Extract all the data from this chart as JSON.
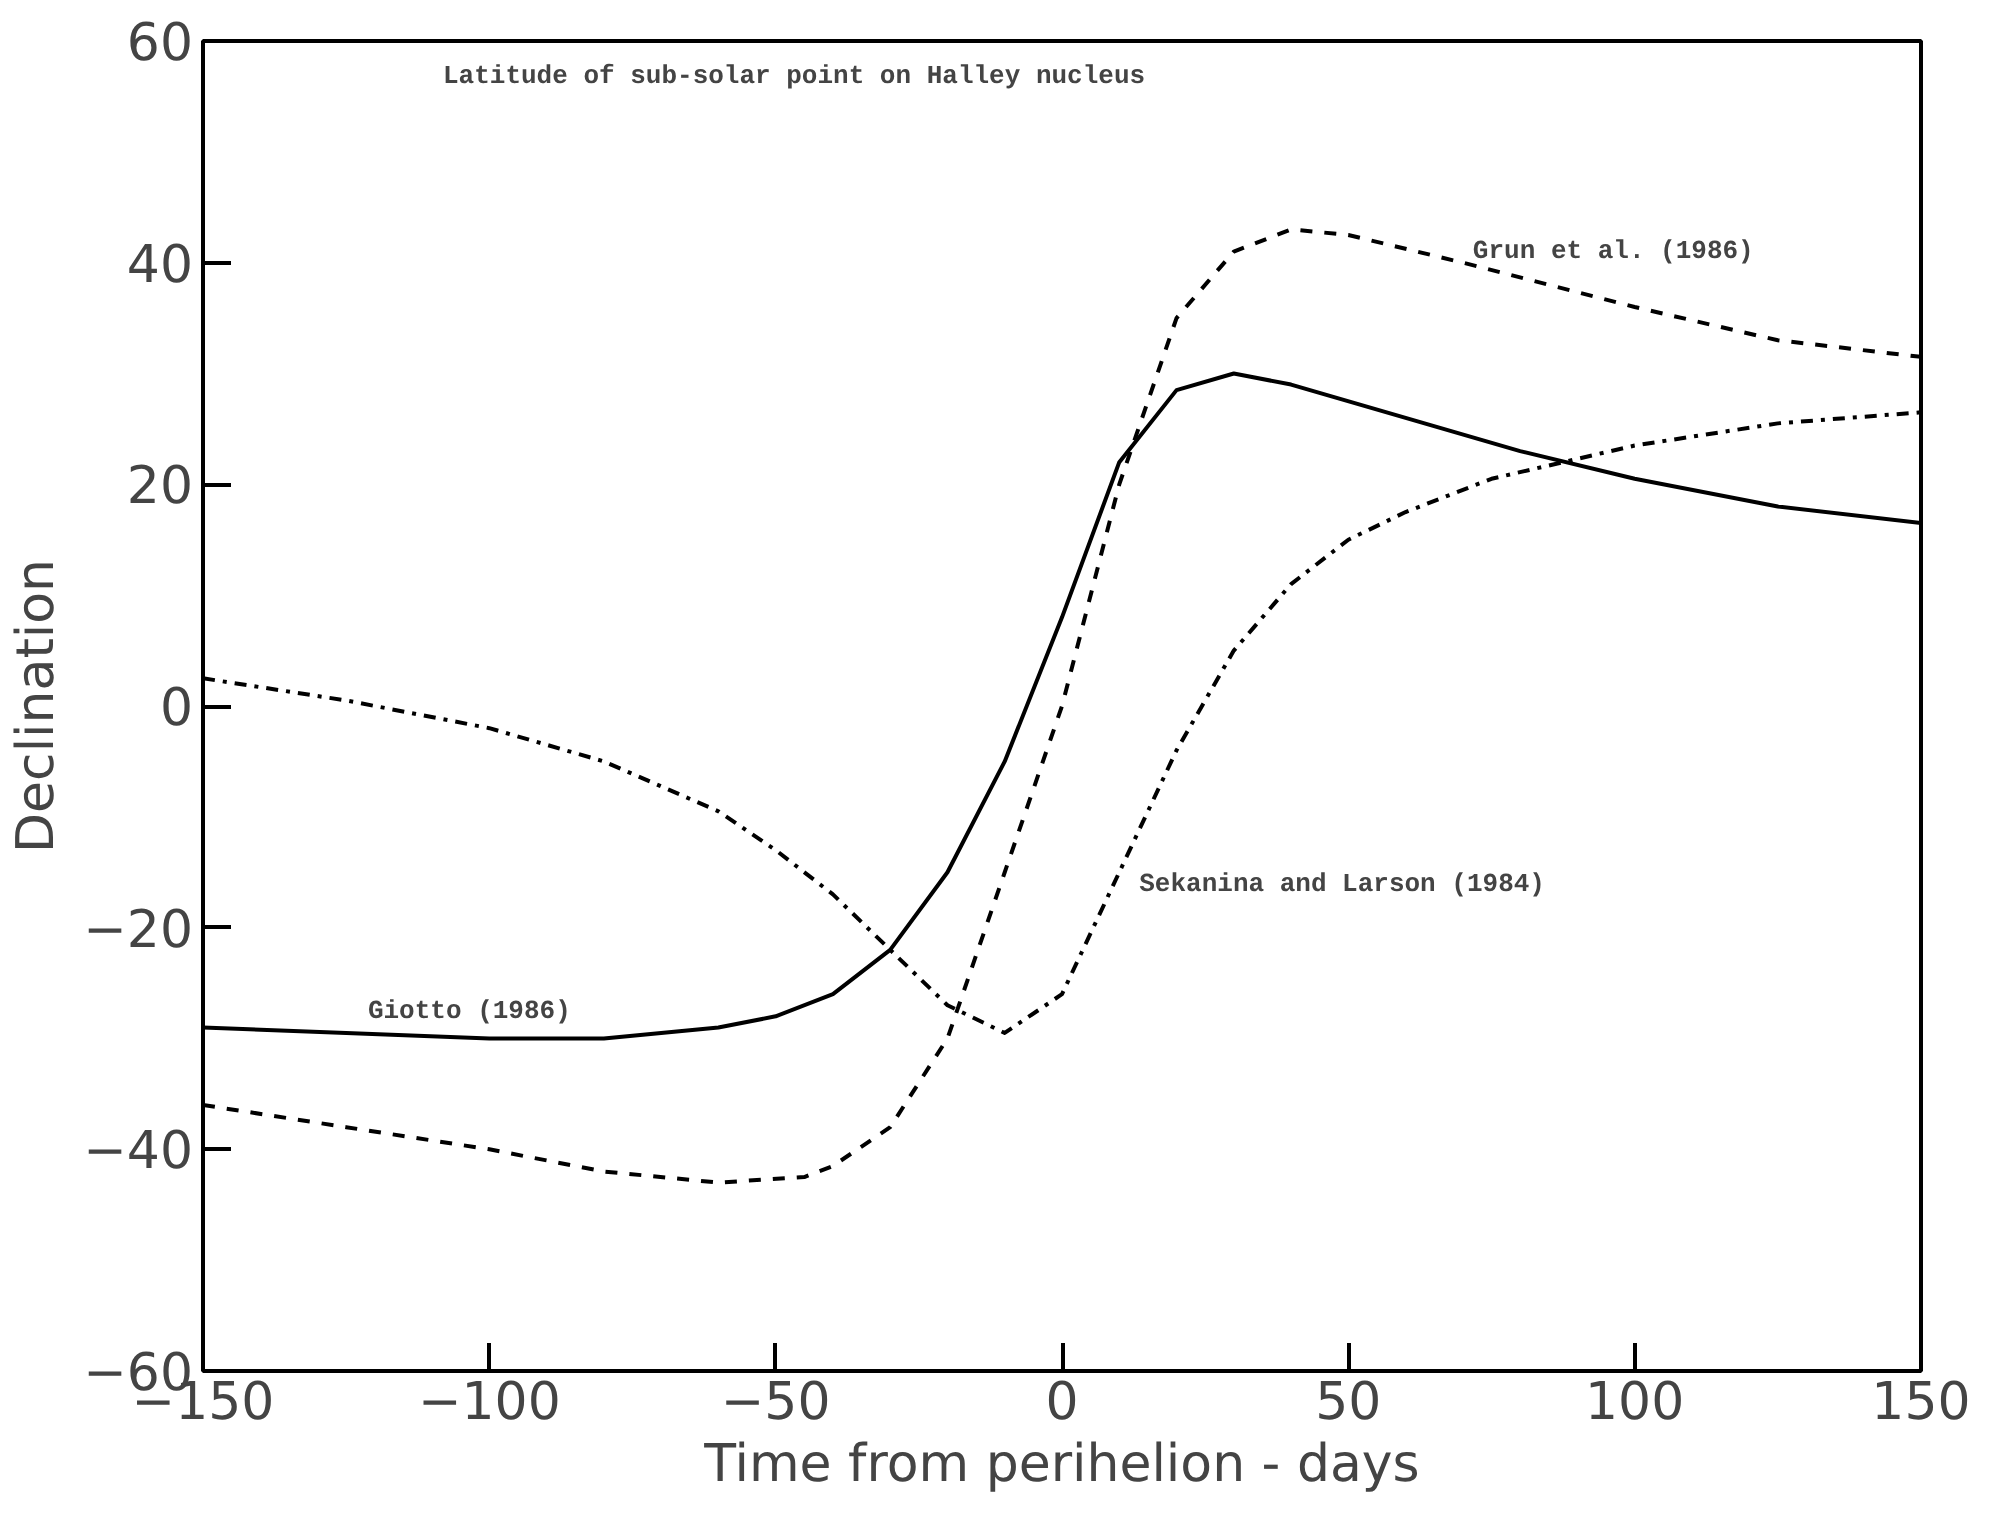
{
  "chart_data": {
    "type": "line",
    "title": "Latitude of sub-solar point on Halley nucleus",
    "xlabel": "Time from perihelion - days",
    "ylabel": "Declination",
    "xlim": [
      -150,
      150
    ],
    "ylim": [
      -60,
      60
    ],
    "xticks": [
      -150,
      -100,
      -50,
      0,
      50,
      100,
      150
    ],
    "yticks": [
      -60,
      -40,
      -20,
      0,
      20,
      40,
      60
    ],
    "grid": false,
    "legend": false,
    "marker": "none",
    "series": [
      {
        "name": "Giotto (1986)",
        "color": "#000000",
        "line_style": "solid",
        "x": [
          -150,
          -125,
          -100,
          -80,
          -60,
          -50,
          -40,
          -30,
          -20,
          -10,
          0,
          10,
          20,
          30,
          40,
          60,
          80,
          100,
          125,
          150
        ],
        "values": [
          -29,
          -29.5,
          -30,
          -30,
          -29,
          -28,
          -26,
          -22,
          -15,
          -5,
          8,
          22,
          28.5,
          30,
          29,
          26,
          23,
          20.5,
          18,
          16.5
        ]
      },
      {
        "name": "Grun et al. (1986)",
        "color": "#000000",
        "line_style": "dashed",
        "x": [
          -150,
          -125,
          -100,
          -80,
          -60,
          -45,
          -40,
          -30,
          -20,
          -10,
          0,
          10,
          20,
          30,
          40,
          50,
          70,
          100,
          125,
          150
        ],
        "values": [
          -36,
          -38,
          -40,
          -42,
          -43,
          -42.5,
          -41.5,
          -38,
          -30,
          -15,
          0,
          20,
          35,
          41,
          43,
          42.5,
          40,
          36,
          33,
          31.5
        ]
      },
      {
        "name": "Sekanina and Larson (1984)",
        "color": "#000000",
        "line_style": "dashdot",
        "x": [
          -150,
          -125,
          -100,
          -80,
          -60,
          -50,
          -40,
          -30,
          -20,
          -10,
          0,
          10,
          20,
          30,
          40,
          50,
          60,
          75,
          100,
          125,
          150
        ],
        "values": [
          2.5,
          0.5,
          -2,
          -5,
          -9.5,
          -13,
          -17,
          -22,
          -27,
          -29.5,
          -26,
          -15,
          -4,
          5,
          11,
          15,
          17.5,
          20.5,
          23.5,
          25.5,
          26.5
        ]
      }
    ]
  }
}
